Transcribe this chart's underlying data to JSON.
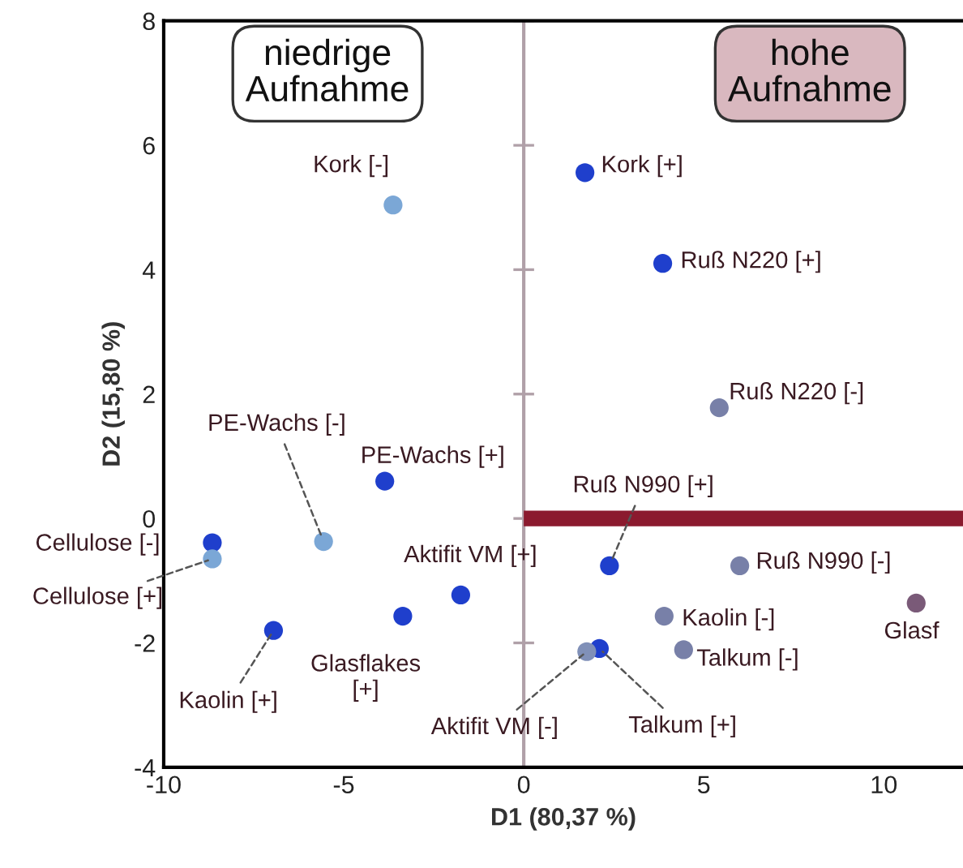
{
  "chart_data": {
    "type": "scatter",
    "xlabel": "D1 (80,37 %)",
    "ylabel": "D2 (15,80 %)",
    "xlim": [
      -10,
      12.2
    ],
    "ylim": [
      -4,
      8
    ],
    "xticks": [
      -10,
      -5,
      0,
      5,
      10
    ],
    "yticks": [
      -4,
      -2,
      0,
      2,
      4,
      6,
      8
    ],
    "grid": false,
    "marker": "circle",
    "series": [
      {
        "x": [
          -3.63,
          1.7,
          3.86,
          5.43,
          -3.86,
          -5.56,
          -8.65,
          -8.65,
          -6.95,
          -3.36,
          -1.75,
          2.38,
          6.0,
          10.9,
          3.9,
          4.44,
          2.1,
          1.75
        ],
        "values": [
          5.04,
          5.56,
          4.1,
          1.78,
          0.6,
          -0.37,
          -0.39,
          -0.65,
          -1.8,
          -1.57,
          -1.23,
          -0.76,
          -0.76,
          -1.36,
          -1.57,
          -2.11,
          -2.09,
          -2.14
        ],
        "colors": [
          "#7ba7d6",
          "#1f3fcc",
          "#1f3fcc",
          "#7880a8",
          "#1f3fcc",
          "#7ba7d6",
          "#1f3fcc",
          "#7ba7d6",
          "#1f3fcc",
          "#1f3fcc",
          "#1f3fcc",
          "#1f3fcc",
          "#7880a8",
          "#7a5a78",
          "#7880a8",
          "#7880a8",
          "#1f3fcc",
          "#8090b8"
        ]
      },
      {
        "type": "line",
        "x": [
          0,
          12.2
        ],
        "values": [
          0,
          0
        ],
        "color": "#8b1a2e",
        "marker": "none"
      }
    ],
    "ref_lines": [
      {
        "axis": "x",
        "value": 0,
        "color": "#b0a0a8"
      }
    ],
    "annotations": [
      "niedrige\nAufnahme",
      "hohe\nAufnahme",
      {
        "text": "Kork [-]",
        "x": -3.63,
        "y": 5.04
      },
      {
        "text": "Kork [+]",
        "x": 1.7,
        "y": 5.56
      },
      {
        "text": "Ruß N220 [+]",
        "x": 3.86,
        "y": 4.1
      },
      {
        "text": "Ruß N220 [-]",
        "x": 5.43,
        "y": 1.78
      },
      {
        "text": "PE-Wachs [+]",
        "x": -3.86,
        "y": 0.6
      },
      {
        "text": "PE-Wachs [-]",
        "x": -5.56,
        "y": -0.37
      },
      {
        "text": "Cellulose [-]",
        "x": -8.65,
        "y": -0.39
      },
      {
        "text": "Cellulose [+]",
        "x": -8.65,
        "y": -0.65
      },
      {
        "text": "Kaolin [+]",
        "x": -6.95,
        "y": -1.8
      },
      {
        "text": "Glasflakes\n[+]",
        "x": -3.36,
        "y": -1.57
      },
      {
        "text": "Aktifit VM [+]",
        "x": -1.75,
        "y": -1.23
      },
      {
        "text": "Ruß N990 [+]",
        "x": 2.38,
        "y": -0.76
      },
      {
        "text": "Ruß N990 [-]",
        "x": 6.0,
        "y": -0.76
      },
      {
        "text": "Glasf",
        "x": 10.9,
        "y": -1.36
      },
      {
        "text": "Kaolin [-]",
        "x": 3.9,
        "y": -1.57
      },
      {
        "text": "Talkum [-]",
        "x": 4.44,
        "y": -2.11
      },
      {
        "text": "Talkum [+]",
        "x": 2.1,
        "y": -2.09
      },
      {
        "text": "Aktifit VM [-]",
        "x": 1.75,
        "y": -2.14
      }
    ]
  }
}
